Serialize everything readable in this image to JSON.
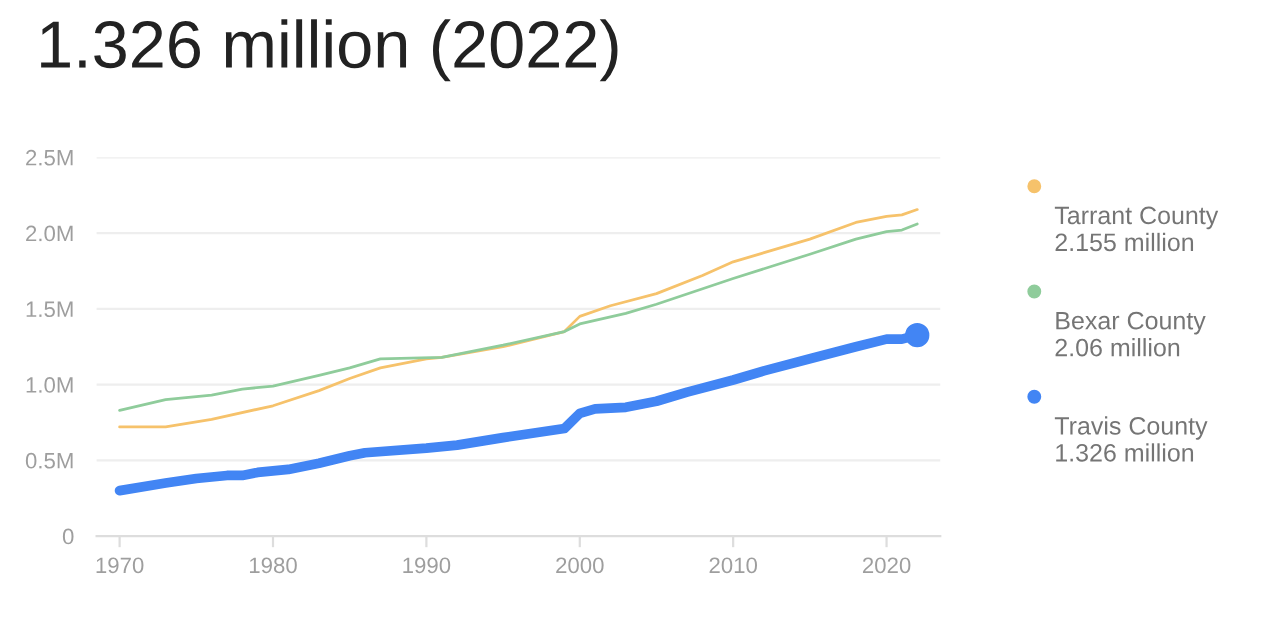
{
  "chart_data": {
    "type": "line",
    "title": "1.326 million (2022)",
    "series": [
      {
        "name": "Tarrant County",
        "color": "#f6c26b",
        "x": [
          1970,
          1973,
          1976,
          1980,
          1983,
          1985,
          1987,
          1990,
          1991,
          1995,
          1999,
          2000,
          2002,
          2005,
          2008,
          2010,
          2015,
          2018,
          2020,
          2021,
          2022
        ],
        "values": [
          0.72,
          0.72,
          0.77,
          0.86,
          0.96,
          1.04,
          1.11,
          1.17,
          1.18,
          1.25,
          1.35,
          1.45,
          1.52,
          1.6,
          1.72,
          1.81,
          1.96,
          2.07,
          2.11,
          2.12,
          2.155
        ]
      },
      {
        "name": "Bexar County",
        "color": "#8fcc9b",
        "x": [
          1970,
          1973,
          1976,
          1978,
          1980,
          1983,
          1985,
          1987,
          1991,
          1995,
          1999,
          2000,
          2003,
          2005,
          2010,
          2015,
          2018,
          2020,
          2021,
          2022
        ],
        "values": [
          0.83,
          0.9,
          0.93,
          0.97,
          0.99,
          1.06,
          1.11,
          1.17,
          1.18,
          1.26,
          1.35,
          1.4,
          1.47,
          1.53,
          1.7,
          1.86,
          1.96,
          2.01,
          2.02,
          2.06
        ]
      },
      {
        "name": "Travis County",
        "color": "#4285f4",
        "x": [
          1970,
          1973,
          1975,
          1977,
          1978,
          1979,
          1981,
          1983,
          1985,
          1986,
          1990,
          1992,
          1995,
          1999,
          2000,
          2001,
          2003,
          2005,
          2007,
          2010,
          2012,
          2015,
          2018,
          2020,
          2021,
          2022
        ],
        "values": [
          0.3,
          0.35,
          0.38,
          0.4,
          0.4,
          0.42,
          0.44,
          0.48,
          0.53,
          0.55,
          0.58,
          0.6,
          0.65,
          0.71,
          0.81,
          0.84,
          0.85,
          0.89,
          0.95,
          1.03,
          1.09,
          1.17,
          1.25,
          1.3,
          1.3,
          1.326
        ]
      },
      {
        "type": "scatter",
        "color": "#4285f4",
        "x": [
          2022
        ],
        "values": [
          1.326
        ]
      }
    ],
    "annotations": [
      "2.155 million",
      "2.06 million",
      "1.326 million"
    ],
    "xlim": [
      1968.5,
      2023.5
    ],
    "xticks": [
      1970,
      1980,
      1990,
      2000,
      2010,
      2020
    ],
    "ylim": [
      0,
      2.5
    ],
    "yticks": [
      {
        "value": 0,
        "label": "0"
      },
      {
        "value": 0.5,
        "label": "0.5M"
      },
      {
        "value": 1.0,
        "label": "1.0M"
      },
      {
        "value": 1.5,
        "label": "1.5M"
      },
      {
        "value": 2.0,
        "label": "2.0M"
      },
      {
        "value": 2.5,
        "label": "2.5M"
      }
    ],
    "grid": "y",
    "legend": "right"
  }
}
